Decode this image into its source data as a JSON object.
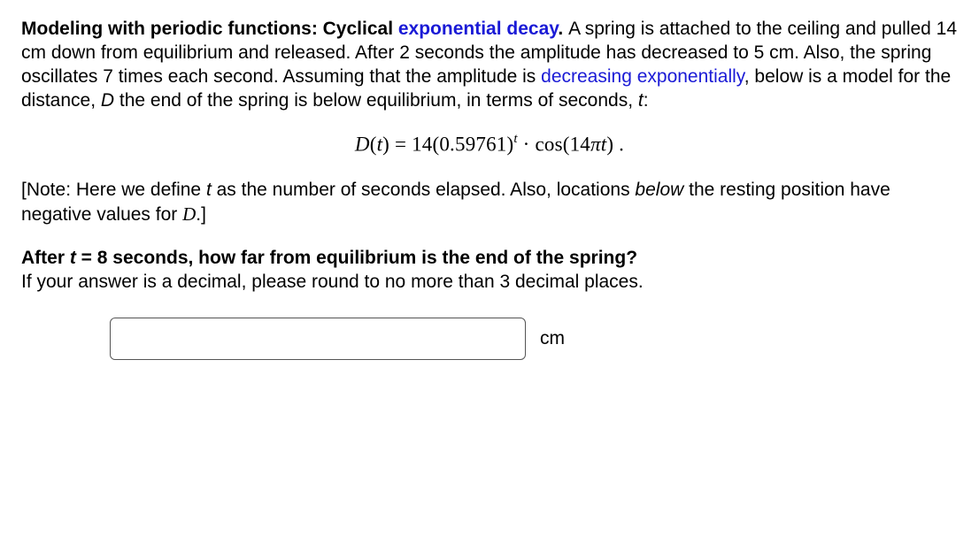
{
  "intro": {
    "lead_bold": "Modeling with periodic functions: Cyclical ",
    "lead_link": "exponential decay",
    "lead_period": ". ",
    "body1": "A spring is attached to the ceiling and pulled 14 cm down from equilibrium and released. After 2 seconds the amplitude has decreased to 5 cm. Also, the spring oscillates 7 times each second. Assuming that the amplitude is ",
    "body_link2": "decreasing exponentially",
    "body2a": ", below is a model for the distance, ",
    "var_D": "D",
    "body2b": " the end of the spring is below equilibrium, in terms of seconds, ",
    "var_t": "t",
    "body2c": ":"
  },
  "equation": {
    "lhs_D": "D",
    "lhs_open": "(",
    "lhs_t": "t",
    "lhs_close": ") = 14(0.59761)",
    "sup_t": "t",
    "dot": " · cos(14",
    "pi": "π",
    "t2": "t",
    "end": ")  ."
  },
  "note": {
    "open": "[Note: Here we define ",
    "t": "t",
    "mid1": " as the number of seconds elapsed. Also, locations ",
    "below": "below",
    "mid2": " the resting position have negative values for ",
    "D": "D",
    "close": ".]"
  },
  "question": {
    "q1a": "After ",
    "q_t": "t",
    "q_eq": " = 8",
    "q1b": " seconds, how far from equilibrium is the end of the spring?",
    "q2": "If your answer is a decimal, please round to no more than 3 decimal places."
  },
  "answer": {
    "unit": "cm",
    "placeholder": ""
  }
}
